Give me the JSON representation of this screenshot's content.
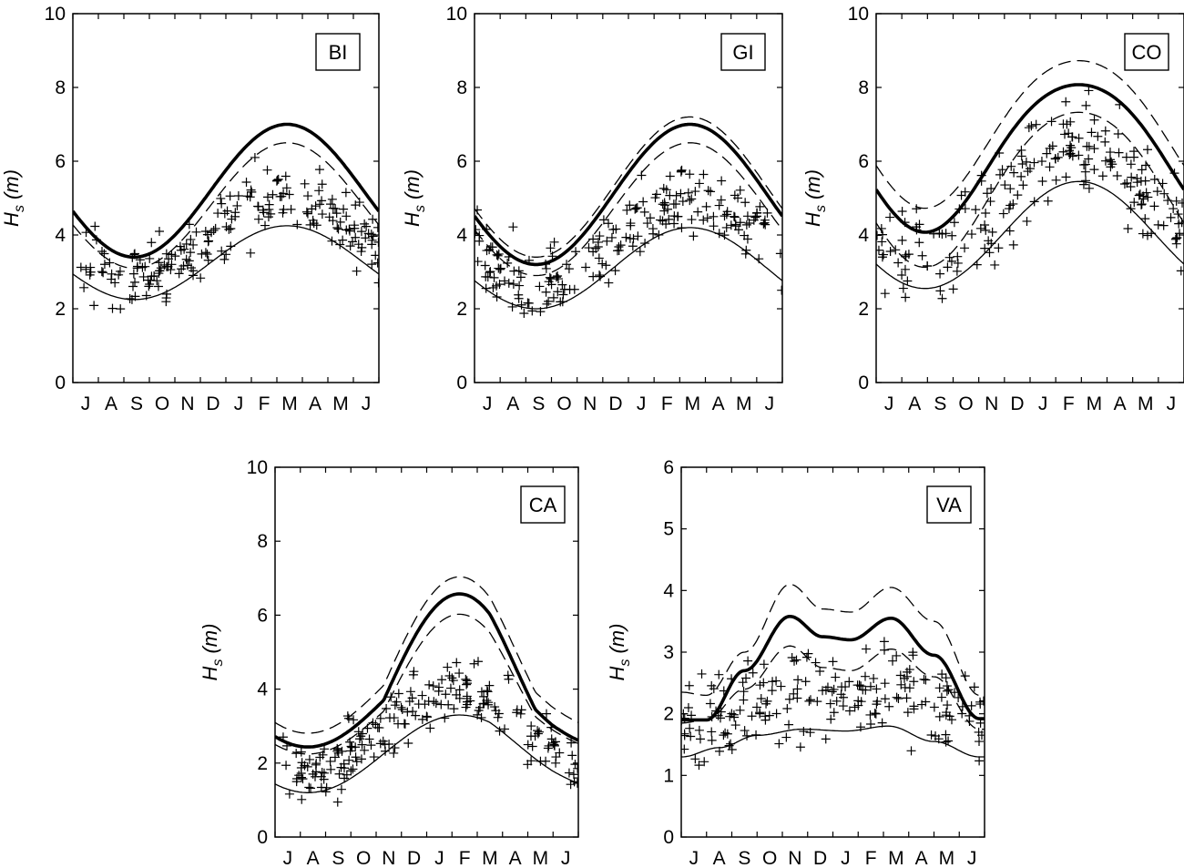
{
  "chart_data": [
    {
      "type": "line",
      "station": "BI",
      "ylabel_main": "H",
      "ylabel_sub": "s",
      "ylabel_unit": "(m)",
      "xtick_labels": [
        "J",
        "A",
        "S",
        "O",
        "N",
        "D",
        "J",
        "F",
        "M",
        "A",
        "M",
        "J"
      ],
      "ylim": [
        0,
        10
      ],
      "yticks": [
        "0",
        "2",
        "4",
        "6",
        "8",
        "10"
      ],
      "grid": false,
      "curves": {
        "mean": {
          "base": 3.25,
          "amp": 1.0,
          "h1": 8.4
        },
        "upper": {
          "base": 5.2,
          "amp": 1.8,
          "h1": 8.4
        },
        "lower": {
          "base": 4.8,
          "amp": 1.7,
          "h1": 8.4
        },
        "extreme": {
          "base": 5.2,
          "amp": 1.8,
          "h1": 8.4
        }
      },
      "scatter": {
        "n": 210,
        "seed": 11,
        "spread": 0.55,
        "boost": 0.55
      }
    },
    {
      "type": "line",
      "station": "GI",
      "ylabel_main": "H",
      "ylabel_sub": "s",
      "ylabel_unit": "(m)",
      "xtick_labels": [
        "J",
        "A",
        "S",
        "O",
        "N",
        "D",
        "J",
        "F",
        "M",
        "A",
        "M",
        "J"
      ],
      "ylim": [
        0,
        10
      ],
      "yticks": [
        "0",
        "2",
        "4",
        "6",
        "8",
        "10"
      ],
      "grid": false,
      "curves": {
        "mean": {
          "base": 3.1,
          "amp": 1.1,
          "h1": 8.4
        },
        "upper": {
          "base": 5.3,
          "amp": 1.9,
          "h1": 8.4
        },
        "lower": {
          "base": 4.7,
          "amp": 1.8,
          "h1": 8.4
        },
        "extreme": {
          "base": 5.1,
          "amp": 1.9,
          "h1": 8.4
        }
      },
      "scatter": {
        "n": 210,
        "seed": 23,
        "spread": 0.6,
        "boost": 0.6
      }
    },
    {
      "type": "line",
      "station": "CO",
      "ylabel_main": "H",
      "ylabel_sub": "s",
      "ylabel_unit": "(m)",
      "xtick_labels": [
        "J",
        "A",
        "S",
        "O",
        "N",
        "D",
        "J",
        "F",
        "M",
        "A",
        "M",
        "J"
      ],
      "ylim": [
        0,
        10
      ],
      "yticks": [
        "0",
        "2",
        "4",
        "6",
        "8",
        "10"
      ],
      "grid": false,
      "curves": {
        "mean": {
          "base": 4.0,
          "amp": 1.45,
          "h1": 7.9
        },
        "upper": {
          "base": 6.9,
          "amp": 2.0,
          "h1": 7.9,
          "flat": 0.35
        },
        "lower": {
          "base": 5.4,
          "amp": 2.1,
          "h1": 7.9,
          "flat": 0.35
        },
        "extreme": {
          "base": 6.25,
          "amp": 2.0,
          "h1": 7.9,
          "flat": 0.35
        }
      },
      "scatter": {
        "n": 210,
        "seed": 37,
        "spread": 0.75,
        "boost": 0.75
      }
    },
    {
      "type": "line",
      "station": "CA",
      "ylabel_main": "H",
      "ylabel_sub": "s",
      "ylabel_unit": "(m)",
      "xtick_labels": [
        "J",
        "A",
        "S",
        "O",
        "N",
        "D",
        "J",
        "F",
        "M",
        "A",
        "M",
        "J"
      ],
      "ylim": [
        0,
        10
      ],
      "yticks": [
        "0",
        "2",
        "4",
        "6",
        "8",
        "10"
      ],
      "grid": false,
      "curves": {
        "mean": {
          "base": 2.25,
          "amp": 1.05,
          "h1": 7.3,
          "tail": 1.5
        },
        "upper": {
          "base": 4.1,
          "amp": 2.35,
          "h1": 7.3,
          "tail": 3.1,
          "narrow": 1
        },
        "lower": {
          "base": 3.4,
          "amp": 2.1,
          "h1": 7.3,
          "tail": 2.6,
          "narrow": 1
        },
        "extreme": {
          "base": 3.7,
          "amp": 2.3,
          "h1": 7.3,
          "tail": 2.3,
          "narrow": 1
        }
      },
      "scatter": {
        "n": 210,
        "seed": 53,
        "spread": 0.5,
        "boost": 0.55
      }
    },
    {
      "type": "line",
      "station": "VA",
      "ylabel_main": "H",
      "ylabel_sub": "s",
      "ylabel_unit": "(m)",
      "xtick_labels": [
        "J",
        "A",
        "S",
        "O",
        "N",
        "D",
        "J",
        "F",
        "M",
        "A",
        "M",
        "J"
      ],
      "ylim": [
        0,
        6
      ],
      "yticks": [
        "0",
        "1",
        "2",
        "3",
        "4",
        "5",
        "6"
      ],
      "grid": false,
      "curves": {
        "mean": {
          "pts": [
            [
              0,
              1.3
            ],
            [
              1.5,
              1.45
            ],
            [
              3,
              1.65
            ],
            [
              4.8,
              1.75
            ],
            [
              6.5,
              1.72
            ],
            [
              8.2,
              1.8
            ],
            [
              10,
              1.55
            ],
            [
              11.8,
              1.3
            ]
          ]
        },
        "upper": {
          "pts": [
            [
              0,
              2.35
            ],
            [
              1,
              2.3
            ],
            [
              2.5,
              3.0
            ],
            [
              4.3,
              4.1
            ],
            [
              5.6,
              3.7
            ],
            [
              6.7,
              3.65
            ],
            [
              8.3,
              4.05
            ],
            [
              10,
              3.5
            ],
            [
              11.8,
              2.3
            ]
          ]
        },
        "lower": {
          "pts": [
            [
              0,
              1.85
            ],
            [
              1,
              1.9
            ],
            [
              2.5,
              2.4
            ],
            [
              4.3,
              3.1
            ],
            [
              5.6,
              2.75
            ],
            [
              6.7,
              2.7
            ],
            [
              8.3,
              3.05
            ],
            [
              10,
              2.6
            ],
            [
              11.8,
              1.75
            ]
          ]
        },
        "extreme": {
          "pts": [
            [
              0,
              1.9
            ],
            [
              1,
              1.9
            ],
            [
              2.5,
              2.7
            ],
            [
              4.3,
              3.58
            ],
            [
              5.6,
              3.25
            ],
            [
              6.7,
              3.2
            ],
            [
              8.3,
              3.55
            ],
            [
              10,
              2.95
            ],
            [
              11.8,
              1.92
            ]
          ]
        }
      },
      "scatter": {
        "n": 200,
        "seed": 71,
        "spread": 0.45,
        "boost": 0.45
      }
    }
  ]
}
